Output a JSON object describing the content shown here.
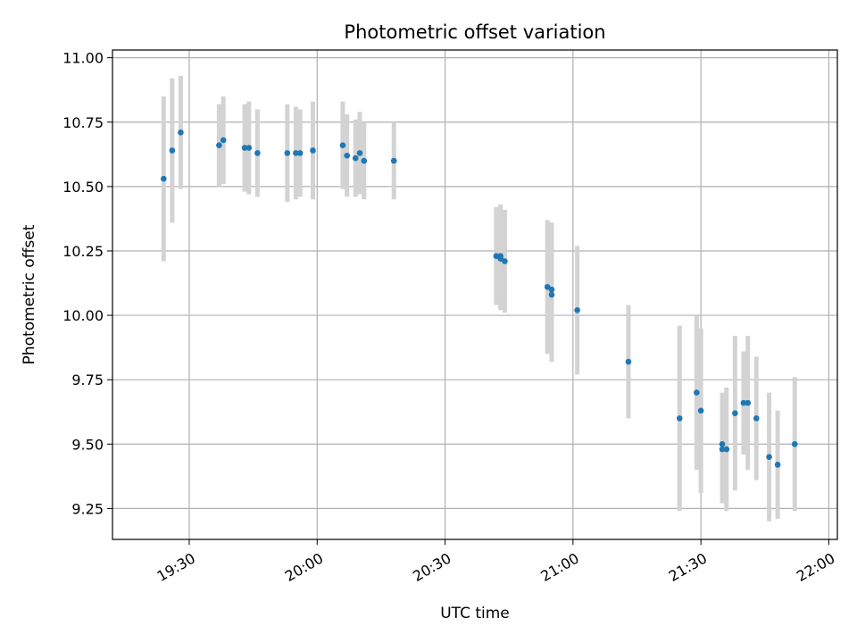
{
  "chart_data": {
    "type": "scatter",
    "title": "Photometric offset variation",
    "xlabel": "UTC time",
    "ylabel": "Photometric offset",
    "xlim": [
      "19:12",
      "22:02"
    ],
    "ylim": [
      9.13,
      11.03
    ],
    "x_ticks": [
      "19:30",
      "20:00",
      "20:30",
      "21:00",
      "21:30",
      "22:00"
    ],
    "y_ticks": [
      "9.25",
      "9.50",
      "9.75",
      "10.00",
      "10.25",
      "10.50",
      "10.75",
      "11.00"
    ],
    "grid": true,
    "colors": {
      "point": "#1f77b4",
      "errorbar": "#d3d3d3",
      "grid": "#b0b0b0"
    },
    "series": [
      {
        "x": [
          "19:24",
          "19:26",
          "19:28",
          "19:37",
          "19:38",
          "19:43",
          "19:44",
          "19:46",
          "19:53",
          "19:55",
          "19:56",
          "19:59",
          "20:06",
          "20:07",
          "20:09",
          "20:10",
          "20:11",
          "20:18",
          "20:42",
          "20:43",
          "20:43",
          "20:44",
          "20:54",
          "20:55",
          "20:55",
          "21:01",
          "21:13",
          "21:25",
          "21:29",
          "21:30",
          "21:35",
          "21:35",
          "21:36",
          "21:38",
          "21:40",
          "21:41",
          "21:43",
          "21:46",
          "21:48",
          "21:52"
        ],
        "y": [
          10.53,
          10.64,
          10.71,
          10.66,
          10.68,
          10.65,
          10.65,
          10.63,
          10.63,
          10.63,
          10.63,
          10.64,
          10.66,
          10.62,
          10.61,
          10.63,
          10.6,
          10.6,
          10.23,
          10.23,
          10.22,
          10.21,
          10.11,
          10.08,
          10.1,
          10.02,
          9.82,
          9.6,
          9.7,
          9.63,
          9.48,
          9.5,
          9.48,
          9.62,
          9.66,
          9.66,
          9.6,
          9.45,
          9.42,
          9.5
        ],
        "y_err": [
          0.32,
          0.28,
          0.22,
          0.16,
          0.17,
          0.17,
          0.18,
          0.17,
          0.19,
          0.18,
          0.17,
          0.19,
          0.17,
          0.16,
          0.15,
          0.16,
          0.15,
          0.15,
          0.19,
          0.2,
          0.2,
          0.2,
          0.26,
          0.26,
          0.26,
          0.25,
          0.22,
          0.36,
          0.3,
          0.32,
          0.21,
          0.2,
          0.24,
          0.3,
          0.2,
          0.26,
          0.24,
          0.25,
          0.21,
          0.26
        ]
      }
    ]
  }
}
